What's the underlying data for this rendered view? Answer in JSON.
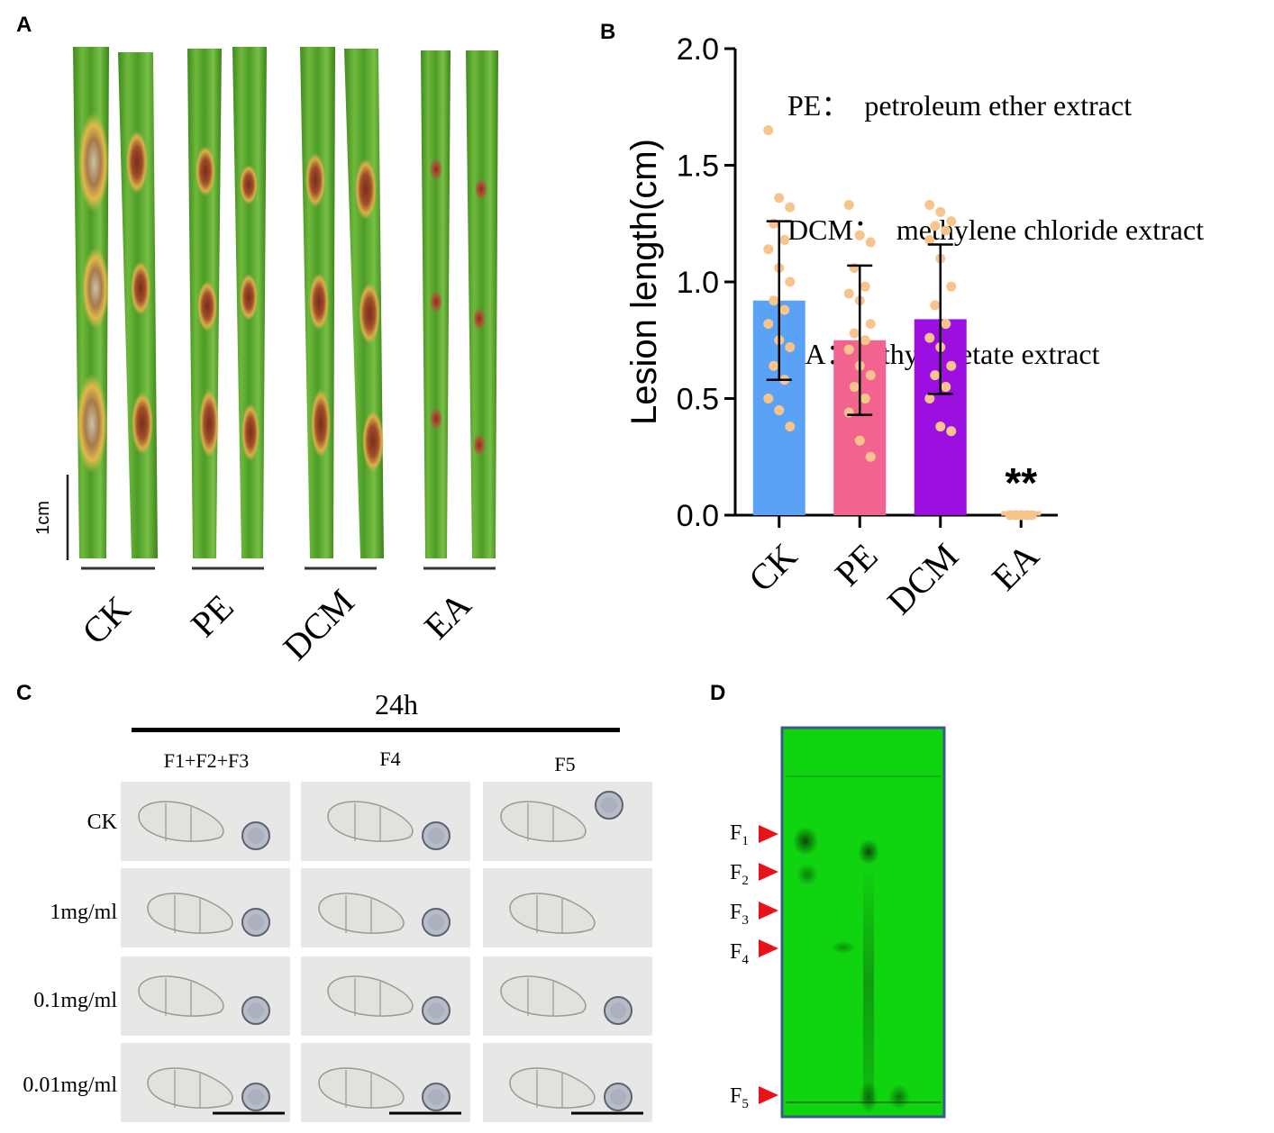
{
  "panels": {
    "a": {
      "letter": "A",
      "scale_label": "1cm",
      "groups": [
        "CK",
        "PE",
        "DCM",
        "EA"
      ]
    },
    "b": {
      "letter": "B",
      "legend": [
        "PE：  petroleum ether extract",
        "DCM：  methylene chloride extract",
        "EA：  ethyl acetate extract"
      ],
      "significance": "**"
    },
    "c": {
      "letter": "C",
      "time_label": "24h",
      "columns": [
        "F1+F2+F3",
        "F4",
        "F5"
      ],
      "rows": [
        "CK",
        "1mg/ml",
        "0.1mg/ml",
        "0.01mg/ml"
      ]
    },
    "d": {
      "letter": "D",
      "fractions": [
        {
          "base": "F",
          "sub": "1"
        },
        {
          "base": "F",
          "sub": "2"
        },
        {
          "base": "F",
          "sub": "3"
        },
        {
          "base": "F",
          "sub": "4"
        },
        {
          "base": "F",
          "sub": "5"
        }
      ]
    }
  },
  "chart_data": {
    "type": "bar",
    "categories": [
      "CK",
      "PE",
      "DCM",
      "EA"
    ],
    "values": [
      0.92,
      0.75,
      0.84,
      0.0
    ],
    "errors": [
      0.34,
      0.32,
      0.32,
      0.0
    ],
    "points": [
      [
        1.65,
        1.36,
        1.32,
        1.25,
        1.18,
        1.14,
        1.06,
        1.0,
        0.92,
        0.88,
        0.82,
        0.75,
        0.72,
        0.64,
        0.58,
        0.5,
        0.45,
        0.38
      ],
      [
        1.33,
        1.2,
        1.17,
        1.06,
        0.98,
        0.95,
        0.92,
        0.82,
        0.78,
        0.75,
        0.71,
        0.64,
        0.6,
        0.55,
        0.5,
        0.44,
        0.32,
        0.25
      ],
      [
        1.33,
        1.3,
        1.26,
        1.24,
        1.22,
        1.18,
        1.1,
        0.98,
        0.9,
        0.82,
        0.76,
        0.72,
        0.64,
        0.6,
        0.55,
        0.5,
        0.38,
        0.36
      ],
      [
        0.0,
        0.0,
        0.0,
        0.0,
        0.0,
        0.0
      ]
    ],
    "colors": [
      "#5aa2f5",
      "#f2648f",
      "#9b10e0",
      "#f7c58c"
    ],
    "point_color": "#f7c58c",
    "ylabel": "Lesion length(cm)",
    "xlabel": "",
    "ylim": [
      0.0,
      2.0
    ],
    "yticks": [
      "0.0",
      "0.5",
      "1.0",
      "1.5",
      "2.0"
    ],
    "yticks_values": [
      0.0,
      0.5,
      1.0,
      1.5,
      2.0
    ],
    "grid": false
  }
}
